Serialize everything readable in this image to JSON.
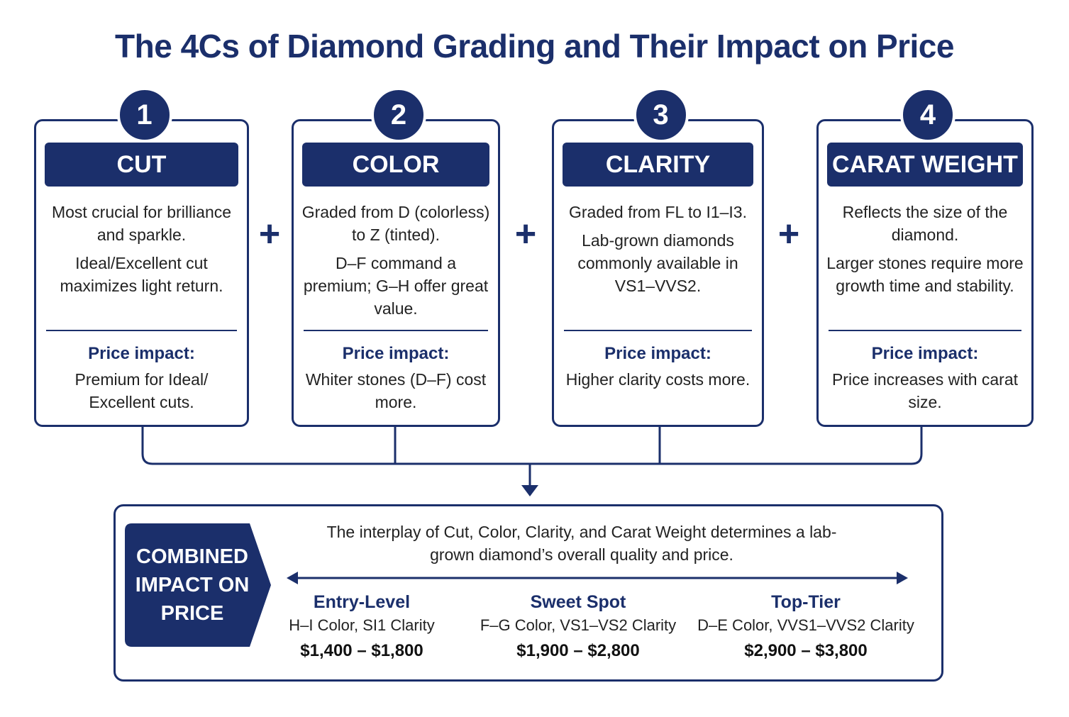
{
  "title": "The 4Cs of Diamond Grading and Their Impact on Price",
  "cards": [
    {
      "number": "1",
      "heading": "CUT",
      "desc": [
        "Most crucial for brilliance and sparkle.",
        "Ideal/Excellent cut maximizes light return."
      ],
      "impact_label": "Price impact:",
      "impact_text": "Premium for Ideal/ Excellent cuts."
    },
    {
      "number": "2",
      "heading": "COLOR",
      "desc": [
        "Graded from D (colorless) to Z (tinted).",
        "D–F command a premium; G–H offer great value."
      ],
      "impact_label": "Price impact:",
      "impact_text": "Whiter stones (D–F) cost more."
    },
    {
      "number": "3",
      "heading": "CLARITY",
      "desc": [
        "Graded from FL to I1–I3.",
        "Lab-grown diamonds commonly available in VS1–VVS2."
      ],
      "impact_label": "Price impact:",
      "impact_text": "Higher clarity costs more."
    },
    {
      "number": "4",
      "heading": "CARAT WEIGHT",
      "desc": [
        "Reflects the size of the diamond.",
        "Larger stones require more growth time and stability."
      ],
      "impact_label": "Price impact:",
      "impact_text": "Price increases with carat size."
    }
  ],
  "plus_symbol": "+",
  "combined": {
    "badge": "COMBINED IMPACT ON PRICE",
    "summary": "The interplay of Cut, Color, Clarity, and Carat Weight determines a lab-grown diamond’s overall quality and price.",
    "tiers": [
      {
        "name": "Entry-Level",
        "spec": "H–I Color, SI1 Clarity",
        "price": "$1,400 – $1,800"
      },
      {
        "name": "Sweet Spot",
        "spec": "F–G Color, VS1–VS2 Clarity",
        "price": "$1,900 – $2,800"
      },
      {
        "name": "Top-Tier",
        "spec": "D–E Color, VVS1–VVS2 Clarity",
        "price": "$2,900 – $3,800"
      }
    ]
  },
  "colors": {
    "navy": "#1b2f6b",
    "text": "#222222",
    "background": "#ffffff"
  }
}
